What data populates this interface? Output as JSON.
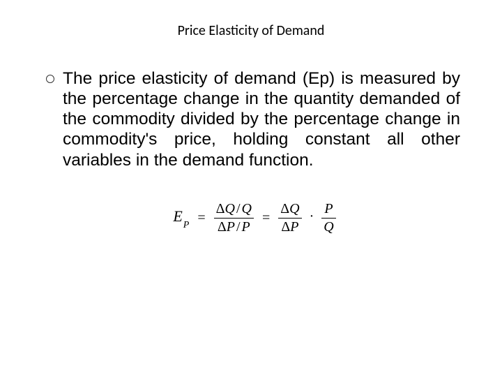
{
  "title": "Price Elasticity of Demand",
  "body": "The price elasticity of demand (Ep) is measured by the percentage change in the quantity demanded of the commodity divided  by the percentage change in commodity's price, holding constant all other variables in the demand function.",
  "formula": {
    "lhs_var": "E",
    "lhs_sub": "P",
    "eq": "=",
    "frac1_num_a": "Δ",
    "frac1_num_b": "Q",
    "frac1_num_slash": "/",
    "frac1_num_c": "Q",
    "frac1_den_a": "Δ",
    "frac1_den_b": "P",
    "frac1_den_slash": "/",
    "frac1_den_c": "P",
    "frac2_num_a": "Δ",
    "frac2_num_b": "Q",
    "frac2_den_a": "Δ",
    "frac2_den_b": "P",
    "dot": "·",
    "frac3_num": "P",
    "frac3_den": "Q"
  },
  "colors": {
    "background": "#ffffff",
    "text": "#000000",
    "bullet_border": "#333333"
  },
  "fonts": {
    "title_size_pt": 20,
    "body_size_pt": 24,
    "formula_size_pt": 22
  }
}
